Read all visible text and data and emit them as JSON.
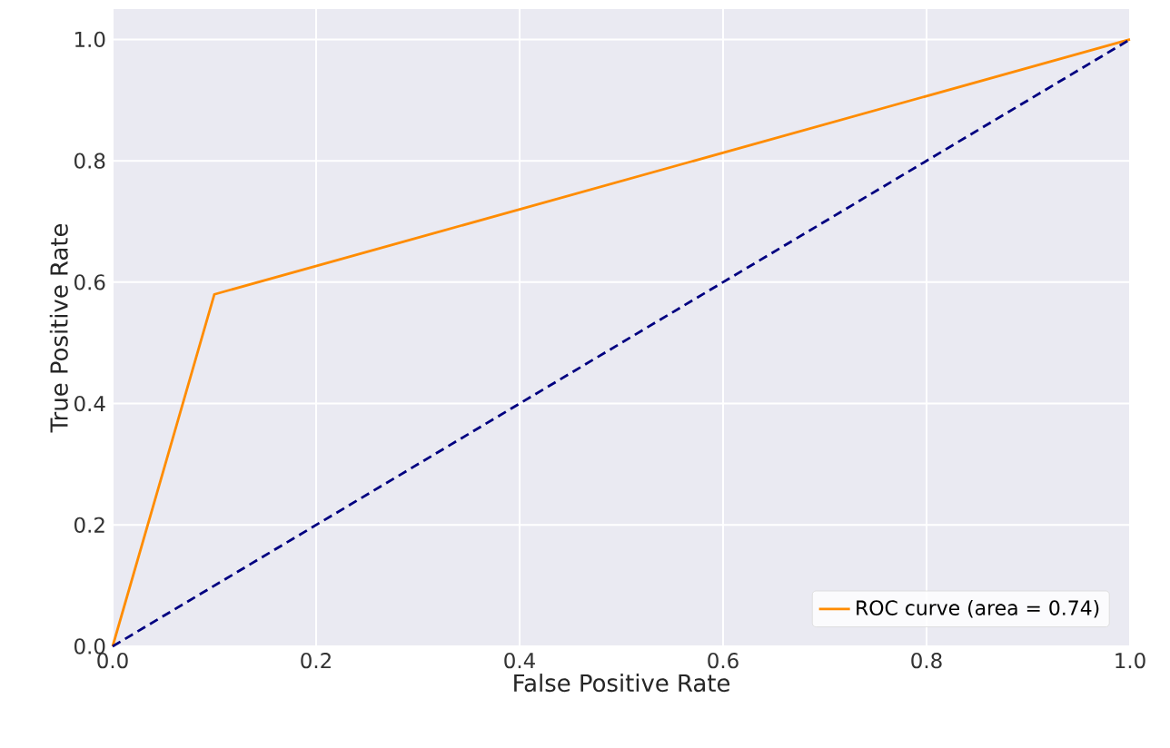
{
  "chart_data": {
    "type": "line",
    "xlabel": "False Positive Rate",
    "ylabel": "True Positive Rate",
    "xlim": [
      0,
      1
    ],
    "ylim": [
      0,
      1.05
    ],
    "xticks": [
      {
        "value": 0,
        "label": "0.0"
      },
      0.2,
      0.4,
      0.6,
      0.8,
      {
        "value": 1,
        "label": "1.0"
      }
    ],
    "yticks": [
      {
        "value": 0,
        "label": "0.0"
      },
      0.2,
      0.4,
      0.6,
      0.8,
      {
        "value": 1,
        "label": "1.0"
      }
    ],
    "grid": true,
    "legend": "bottom right",
    "series": [
      {
        "name": "ROC curve (area = 0.74)",
        "color": "#ff8c00",
        "x": [
          0,
          0.1,
          1
        ],
        "values": [
          0,
          0.58,
          1
        ],
        "line_style": "solid"
      },
      {
        "color": "#000080",
        "x": [
          0,
          1
        ],
        "values": [
          0,
          1
        ],
        "line_style": "dashed"
      }
    ]
  }
}
